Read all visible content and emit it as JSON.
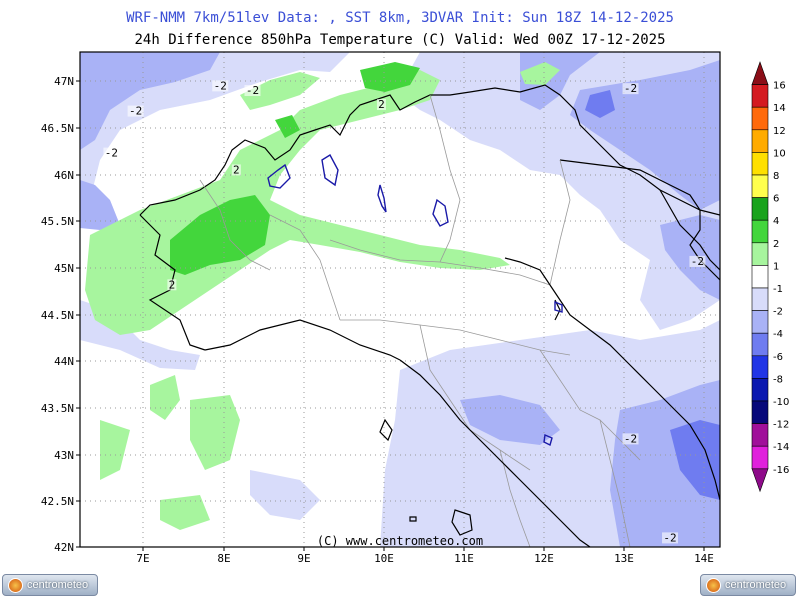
{
  "header": {
    "line1": "WRF-NMM 7km/51lev   Data: , SST 8km, 3DVAR   Init: Sun 18Z 14-12-2025",
    "line2": "24h Difference 850hPa Temperature (C)  Valid: Wed 00Z 17-12-2025"
  },
  "map": {
    "lat_labels": [
      "47N",
      "46.5N",
      "46N",
      "45.5N",
      "45N",
      "44.5N",
      "44N",
      "43.5N",
      "43N",
      "42.5N",
      "42N"
    ],
    "lon_labels": [
      "7E",
      "8E",
      "9E",
      "10E",
      "11E",
      "12E",
      "13E",
      "14E"
    ],
    "credit": "(C) www.centrometeo.com",
    "contour_labels": [
      {
        "text": "-2",
        "lon": 7.95,
        "lat": 46.9
      },
      {
        "text": "-2",
        "lon": 8.35,
        "lat": 46.85
      },
      {
        "text": "-2",
        "lon": 6.9,
        "lat": 46.63
      },
      {
        "text": "-2",
        "lon": 6.6,
        "lat": 46.18
      },
      {
        "text": "2",
        "lon": 9.95,
        "lat": 46.7
      },
      {
        "text": "2",
        "lon": 8.15,
        "lat": 46.0
      },
      {
        "text": "2",
        "lon": 7.35,
        "lat": 44.77
      },
      {
        "text": "-2",
        "lon": 13.04,
        "lat": 46.87
      },
      {
        "text": "-2",
        "lon": 13.87,
        "lat": 45.02
      },
      {
        "text": "-2",
        "lon": 13.04,
        "lat": 43.12
      },
      {
        "text": "-2",
        "lon": 13.53,
        "lat": 42.06
      }
    ]
  },
  "colorbar": {
    "labels": [
      "16",
      "14",
      "12",
      "10",
      "8",
      "6",
      "4",
      "2",
      "1",
      "-1",
      "-2",
      "-4",
      "-6",
      "-8",
      "-10",
      "-12",
      "-14",
      "-16"
    ],
    "colors": [
      "#8b0e18",
      "#d41b21",
      "#ff6a0c",
      "#ffab00",
      "#ffe000",
      "#ffff4d",
      "#19a31c",
      "#43d63c",
      "#a7f59e",
      "#ffffff",
      "#d8dcfa",
      "#a9b2f6",
      "#6f7cf0",
      "#2135e6",
      "#0b18b0",
      "#07087a",
      "#a0109a",
      "#e020dc",
      "#8e0a8a"
    ],
    "colors_meaning": "triangle-top, 16-14 ... 1-(-1) ... triangle-bottom"
  },
  "logos": {
    "left": "centrometeo",
    "right": "centrometeo"
  }
}
